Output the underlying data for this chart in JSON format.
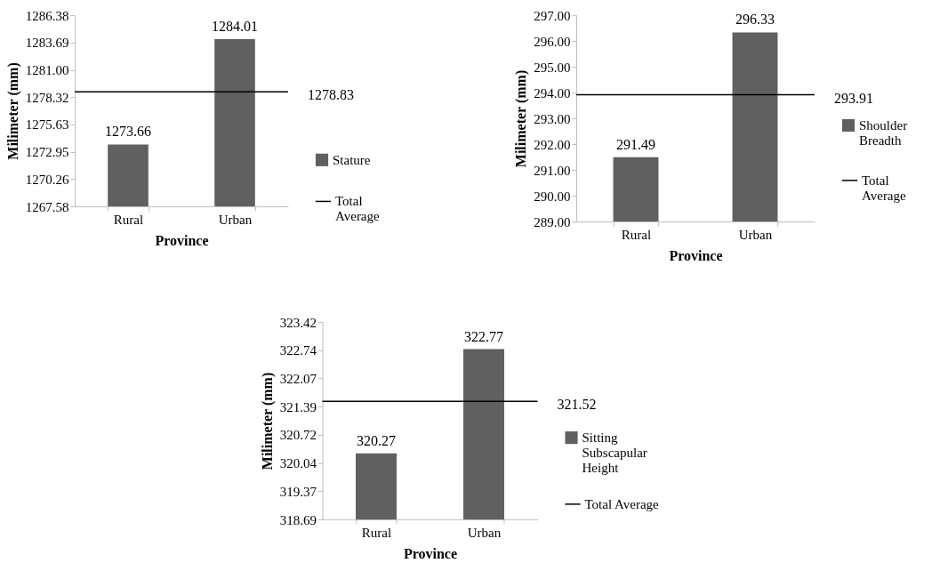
{
  "chart_data": [
    {
      "type": "bar",
      "categories": [
        "Rural",
        "Urban"
      ],
      "xlabel": "Province",
      "ylabel": "Milimeter (mm)",
      "series": [
        {
          "name": "Stature",
          "color": "#606060",
          "values": [
            1273.66,
            1284.01
          ]
        }
      ],
      "ylim": [
        1267.58,
        1286.38
      ],
      "yticks": [
        {
          "value": 1267.58,
          "label": "1267.58"
        },
        {
          "value": 1270.26,
          "label": "1270.26"
        },
        {
          "value": 1272.95,
          "label": "1272.95"
        },
        {
          "value": 1275.63,
          "label": "1275.63"
        },
        {
          "value": 1278.32,
          "label": "1278.32"
        },
        {
          "value": 1281,
          "label": "1281.00"
        },
        {
          "value": 1283.69,
          "label": "1283.69"
        },
        {
          "value": 1286.38,
          "label": "1286.38"
        }
      ],
      "ref_lines": [
        {
          "axis": "y",
          "value": 1278.83,
          "label": "Total Average",
          "color": "#000000"
        }
      ],
      "annotations": [
        "1278.83"
      ],
      "data_labels": true,
      "grid": false,
      "legend": "right"
    },
    {
      "type": "bar",
      "categories": [
        "Rural",
        "Urban"
      ],
      "xlabel": "Province",
      "ylabel": "Milimeter (mm)",
      "series": [
        {
          "name": "Shoulder Breadth",
          "color": "#606060",
          "values": [
            291.49,
            296.33
          ]
        }
      ],
      "ylim": [
        289,
        297
      ],
      "yticks": [
        {
          "value": 289,
          "label": "289.00"
        },
        {
          "value": 290,
          "label": "290.00"
        },
        {
          "value": 291,
          "label": "291.00"
        },
        {
          "value": 292,
          "label": "292.00"
        },
        {
          "value": 293,
          "label": "293.00"
        },
        {
          "value": 294,
          "label": "294.00"
        },
        {
          "value": 295,
          "label": "295.00"
        },
        {
          "value": 296,
          "label": "296.00"
        },
        {
          "value": 297,
          "label": "297.00"
        }
      ],
      "ref_lines": [
        {
          "axis": "y",
          "value": 293.91,
          "label": "Total Average",
          "color": "#000000"
        }
      ],
      "annotations": [
        "293.91"
      ],
      "data_labels": true,
      "grid": false,
      "legend": "right"
    },
    {
      "type": "bar",
      "categories": [
        "Rural",
        "Urban"
      ],
      "xlabel": "Province",
      "ylabel": "Milimeter (mm)",
      "series": [
        {
          "name": "Sitting Subscapular Height",
          "color": "#606060",
          "values": [
            320.27,
            322.77
          ]
        }
      ],
      "ylim": [
        318.69,
        323.42
      ],
      "yticks": [
        318.69,
        319.37,
        320.04,
        320.72,
        321.39,
        322.07,
        322.74,
        323.42
      ],
      "ref_lines": [
        {
          "axis": "y",
          "value": 321.52,
          "label": "Total Average",
          "color": "#000000"
        }
      ],
      "annotations": [
        "321.52"
      ],
      "data_labels": true,
      "grid": false,
      "legend": "right"
    }
  ]
}
